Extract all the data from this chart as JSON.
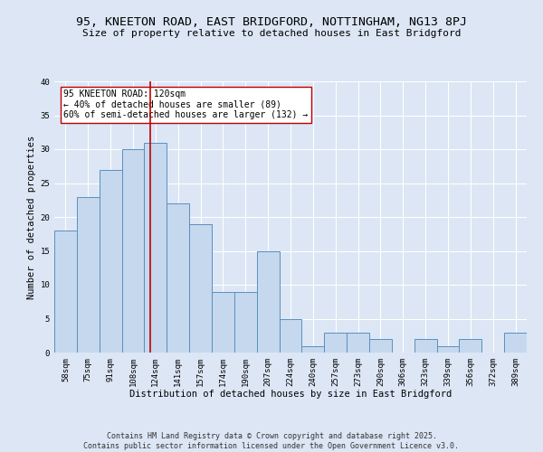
{
  "title": "95, KNEETON ROAD, EAST BRIDGFORD, NOTTINGHAM, NG13 8PJ",
  "subtitle": "Size of property relative to detached houses in East Bridgford",
  "xlabel": "Distribution of detached houses by size in East Bridgford",
  "ylabel": "Number of detached properties",
  "categories": [
    "58sqm",
    "75sqm",
    "91sqm",
    "108sqm",
    "124sqm",
    "141sqm",
    "157sqm",
    "174sqm",
    "190sqm",
    "207sqm",
    "224sqm",
    "240sqm",
    "257sqm",
    "273sqm",
    "290sqm",
    "306sqm",
    "323sqm",
    "339sqm",
    "356sqm",
    "372sqm",
    "389sqm"
  ],
  "values": [
    18,
    23,
    27,
    30,
    31,
    22,
    19,
    9,
    9,
    15,
    5,
    1,
    3,
    3,
    2,
    0,
    2,
    1,
    2,
    0,
    3
  ],
  "bar_color": "#c5d8ee",
  "bar_edge_color": "#5b8fbe",
  "vline_color": "#c00000",
  "annotation_text": "95 KNEETON ROAD: 120sqm\n← 40% of detached houses are smaller (89)\n60% of semi-detached houses are larger (132) →",
  "annotation_box_color": "#ffffff",
  "annotation_box_edge": "#c00000",
  "ylim": [
    0,
    40
  ],
  "yticks": [
    0,
    5,
    10,
    15,
    20,
    25,
    30,
    35,
    40
  ],
  "footer": "Contains HM Land Registry data © Crown copyright and database right 2025.\nContains public sector information licensed under the Open Government Licence v3.0.",
  "bg_color": "#dce6f5",
  "grid_color": "#ffffff",
  "title_fontsize": 9.5,
  "subtitle_fontsize": 8,
  "axis_label_fontsize": 7.5,
  "tick_fontsize": 6.5,
  "annotation_fontsize": 7,
  "footer_fontsize": 6
}
